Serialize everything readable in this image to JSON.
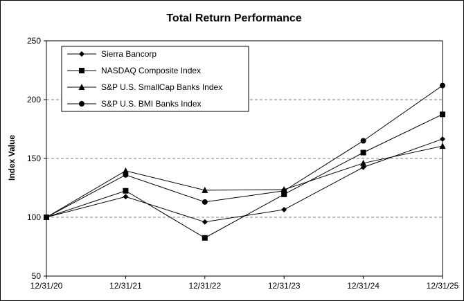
{
  "chart_data": {
    "type": "line",
    "title": "Total Return Performance",
    "xlabel": "",
    "ylabel": "Index Value",
    "categories": [
      "12/31/20",
      "12/31/21",
      "12/31/22",
      "12/31/23",
      "12/31/24",
      "12/31/25"
    ],
    "ylim": [
      50,
      250
    ],
    "yticks": [
      50,
      100,
      150,
      200,
      250
    ],
    "grid": true,
    "legend_position": "top-left",
    "line_color": "#000000",
    "series": [
      {
        "name": "Sierra Bancorp",
        "marker": "diamond",
        "values": [
          100,
          117.5,
          96,
          106.5,
          142.5,
          166.5
        ]
      },
      {
        "name": "NASDAQ Composite Index",
        "marker": "square",
        "values": [
          100,
          122.5,
          82.5,
          119.5,
          155,
          187.5
        ]
      },
      {
        "name": "S&P U.S. SmallCap Banks Index",
        "marker": "triangle",
        "values": [
          100,
          139.5,
          123,
          123.5,
          146,
          160.5
        ]
      },
      {
        "name": "S&P U.S. BMI Banks Index",
        "marker": "circle",
        "values": [
          100,
          136,
          113,
          122.5,
          165,
          212
        ]
      }
    ]
  }
}
